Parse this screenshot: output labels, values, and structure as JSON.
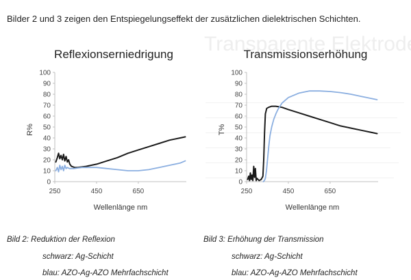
{
  "heading": "Bilder 2 und 3 zeigen den Entspiegelungseffekt der zusätzlichen dielektrischen Schichten.",
  "background_text": {
    "title": "Transparente Elektroden"
  },
  "colors": {
    "black_series": "#1a1a1a",
    "blue_series": "#8aaee0",
    "axis": "#bfbfbf",
    "text": "#1f1f1f"
  },
  "chart_data": [
    {
      "type": "line",
      "title": "Reflexionserniedrigung",
      "xlabel": "Wellenlänge nm",
      "ylabel": "R%",
      "xlim": [
        250,
        880
      ],
      "ylim": [
        0,
        100
      ],
      "x_ticks": [
        "250",
        "450",
        "650"
      ],
      "y_ticks": [
        "0",
        "10",
        "20",
        "30",
        "40",
        "50",
        "60",
        "70",
        "80",
        "90",
        "100"
      ],
      "grid": false,
      "series": [
        {
          "color": "#1a1a1a",
          "points": [
            [
              255,
              18
            ],
            [
              262,
              22
            ],
            [
              268,
              26
            ],
            [
              274,
              21
            ],
            [
              280,
              24
            ],
            [
              286,
              20
            ],
            [
              292,
              25
            ],
            [
              298,
              19
            ],
            [
              304,
              23
            ],
            [
              310,
              18
            ],
            [
              316,
              20
            ],
            [
              322,
              16
            ],
            [
              330,
              14
            ],
            [
              345,
              13
            ],
            [
              360,
              13
            ],
            [
              380,
              13.5
            ],
            [
              400,
              14
            ],
            [
              450,
              16
            ],
            [
              500,
              19
            ],
            [
              550,
              22
            ],
            [
              600,
              26
            ],
            [
              650,
              29
            ],
            [
              700,
              32
            ],
            [
              750,
              35
            ],
            [
              800,
              38
            ],
            [
              850,
              40
            ],
            [
              875,
              41
            ]
          ]
        },
        {
          "color": "#8aaee0",
          "points": [
            [
              255,
              10
            ],
            [
              262,
              13
            ],
            [
              268,
              9
            ],
            [
              274,
              15
            ],
            [
              280,
              11
            ],
            [
              286,
              14
            ],
            [
              292,
              10
            ],
            [
              298,
              15
            ],
            [
              304,
              12
            ],
            [
              310,
              13
            ],
            [
              320,
              12
            ],
            [
              340,
              12
            ],
            [
              360,
              12.5
            ],
            [
              380,
              13
            ],
            [
              420,
              13
            ],
            [
              450,
              13
            ],
            [
              500,
              12
            ],
            [
              550,
              11
            ],
            [
              600,
              10
            ],
            [
              650,
              10
            ],
            [
              700,
              11
            ],
            [
              750,
              13
            ],
            [
              800,
              15
            ],
            [
              850,
              17
            ],
            [
              875,
              19
            ]
          ]
        }
      ]
    },
    {
      "type": "line",
      "title": "Transmissionserhöhung",
      "xlabel": "Wellenlänge nm",
      "ylabel": "T%",
      "xlim": [
        250,
        880
      ],
      "ylim": [
        0,
        100
      ],
      "x_ticks": [
        "250",
        "450",
        "650"
      ],
      "y_ticks": [
        "0",
        "10",
        "20",
        "30",
        "40",
        "50",
        "60",
        "70",
        "80",
        "90",
        "100"
      ],
      "grid": false,
      "series": [
        {
          "color": "#1a1a1a",
          "points": [
            [
              255,
              2
            ],
            [
              260,
              5
            ],
            [
              264,
              1
            ],
            [
              268,
              8
            ],
            [
              272,
              2
            ],
            [
              276,
              6
            ],
            [
              280,
              1
            ],
            [
              284,
              14
            ],
            [
              288,
              4
            ],
            [
              292,
              12
            ],
            [
              296,
              1
            ],
            [
              300,
              3
            ],
            [
              310,
              1
            ],
            [
              320,
              2
            ],
            [
              328,
              5
            ],
            [
              332,
              20
            ],
            [
              336,
              45
            ],
            [
              340,
              62
            ],
            [
              346,
              67
            ],
            [
              355,
              68
            ],
            [
              370,
              69
            ],
            [
              390,
              69
            ],
            [
              420,
              68
            ],
            [
              450,
              66
            ],
            [
              500,
              63
            ],
            [
              550,
              60
            ],
            [
              600,
              57
            ],
            [
              650,
              54
            ],
            [
              700,
              51
            ],
            [
              750,
              49
            ],
            [
              800,
              47
            ],
            [
              850,
              45
            ],
            [
              875,
              44
            ]
          ]
        },
        {
          "color": "#8aaee0",
          "points": [
            [
              330,
              0
            ],
            [
              335,
              1
            ],
            [
              340,
              3
            ],
            [
              345,
              10
            ],
            [
              350,
              20
            ],
            [
              356,
              32
            ],
            [
              362,
              42
            ],
            [
              370,
              50
            ],
            [
              380,
              57
            ],
            [
              390,
              62
            ],
            [
              400,
              66
            ],
            [
              420,
              72
            ],
            [
              450,
              77
            ],
            [
              500,
              81
            ],
            [
              550,
              83
            ],
            [
              600,
              83
            ],
            [
              650,
              82.5
            ],
            [
              700,
              81.5
            ],
            [
              750,
              80
            ],
            [
              800,
              78
            ],
            [
              850,
              76
            ],
            [
              875,
              75
            ]
          ]
        }
      ]
    }
  ],
  "captions": [
    {
      "title": "Bild 2: Reduktion der Reflexion",
      "black": "schwarz: Ag-Schicht",
      "blue": "blau: AZO-Ag-AZO Mehrfachschicht"
    },
    {
      "title": "Bild 3: Erhöhung der  Transmission",
      "black": "schwarz: Ag-Schicht",
      "blue": "blau: AZO-Ag-AZO Mehrfachschicht"
    }
  ]
}
